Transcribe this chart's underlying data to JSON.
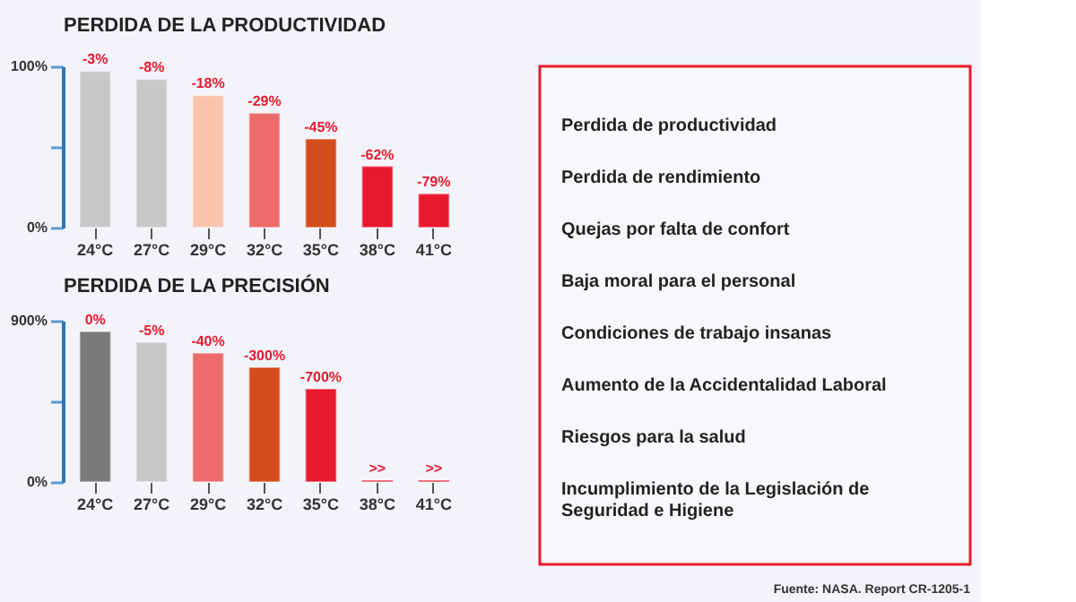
{
  "chart_data": [
    {
      "type": "bar",
      "title": "PERDIDA DE LA PRODUCTIVIDAD",
      "categories": [
        "24°C",
        "27°C",
        "29°C",
        "32°C",
        "35°C",
        "38°C",
        "41°C"
      ],
      "values": [
        97,
        92,
        82,
        71,
        55,
        38,
        21
      ],
      "colors": [
        "#c8c8c8",
        "#c8c8c8",
        "#f9c4ad",
        "#ee6b6b",
        "#d44b1c",
        "#e8192f",
        "#e8192f"
      ],
      "annotations": [
        {
          "text": "-3%",
          "x": "24°C",
          "y": 97
        },
        {
          "text": "-8%",
          "x": "27°C",
          "y": 92
        },
        {
          "text": "-18%",
          "x": "29°C",
          "y": 82
        },
        {
          "text": "-29%",
          "x": "32°C",
          "y": 71
        },
        {
          "text": "-45%",
          "x": "35°C",
          "y": 55
        },
        {
          "text": "-62%",
          "x": "38°C",
          "y": 38
        },
        {
          "text": "-79%",
          "x": "41°C",
          "y": 21
        }
      ],
      "ylim": [
        0,
        100
      ],
      "yticks": [
        {
          "value": 0,
          "label": "0%"
        },
        {
          "value": 50,
          "label": null
        },
        {
          "value": 100,
          "label": "100%"
        }
      ]
    },
    {
      "type": "bar",
      "title": "PERDIDA DE LA PRECISIÓN",
      "categories": [
        "24°C",
        "27°C",
        "29°C",
        "32°C",
        "35°C",
        "38°C",
        "41°C"
      ],
      "values": [
        840,
        780,
        720,
        640,
        520,
        10,
        10
      ],
      "colors": [
        "#7a7a7a",
        "#c8c8c8",
        "#ee6b6b",
        "#d44b1c",
        "#e8192f",
        "#e8192f",
        "#e8192f"
      ],
      "annotations": [
        {
          "text": "0%",
          "x": "24°C",
          "y": 840
        },
        {
          "text": "-5%",
          "x": "27°C",
          "y": 780
        },
        {
          "text": "-40%",
          "x": "29°C",
          "y": 720
        },
        {
          "text": "-300%",
          "x": "32°C",
          "y": 640
        },
        {
          "text": "-700%",
          "x": "35°C",
          "y": 520
        },
        {
          "text": ">>",
          "x": "38°C",
          "y": 10
        },
        {
          "text": ">>",
          "x": "41°C",
          "y": 10
        }
      ],
      "ylim": [
        0,
        900
      ],
      "yticks": [
        {
          "value": 0,
          "label": "0%"
        },
        {
          "value": 450,
          "label": null
        },
        {
          "value": 900,
          "label": "900%"
        }
      ]
    },
    {
      "type": "other",
      "annotations": [
        "Perdida de productividad",
        "Perdida de rendimiento",
        "Quejas por falta de confort",
        "Baja moral para el personal",
        "Condiciones de trabajo insanas",
        "Aumento de la Accidentalidad Laboral",
        "Riesgos para la salud",
        "Incumplimiento de la Legislación de Seguridad e Higiene",
        "Fuente: NASA. Report CR-1205-1"
      ]
    }
  ]
}
